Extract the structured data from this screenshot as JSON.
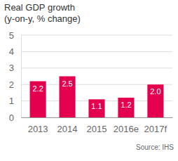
{
  "chart_data": {
    "type": "bar",
    "title": "Real GDP growth",
    "subtitle": "(y-on-y, % change)",
    "categories": [
      "2013",
      "2014",
      "2015",
      "2016e",
      "2017f"
    ],
    "values": [
      2.2,
      2.5,
      1.1,
      1.2,
      2.0
    ],
    "value_labels": [
      "2.2",
      "2.5",
      "1.1",
      "1.2",
      "2.0"
    ],
    "color": "#e5004f",
    "ylim": [
      0,
      5
    ],
    "yticks": [
      0,
      1,
      2,
      3,
      4,
      5
    ],
    "grid": true,
    "data_labels": true,
    "source": "Source: IHS"
  }
}
